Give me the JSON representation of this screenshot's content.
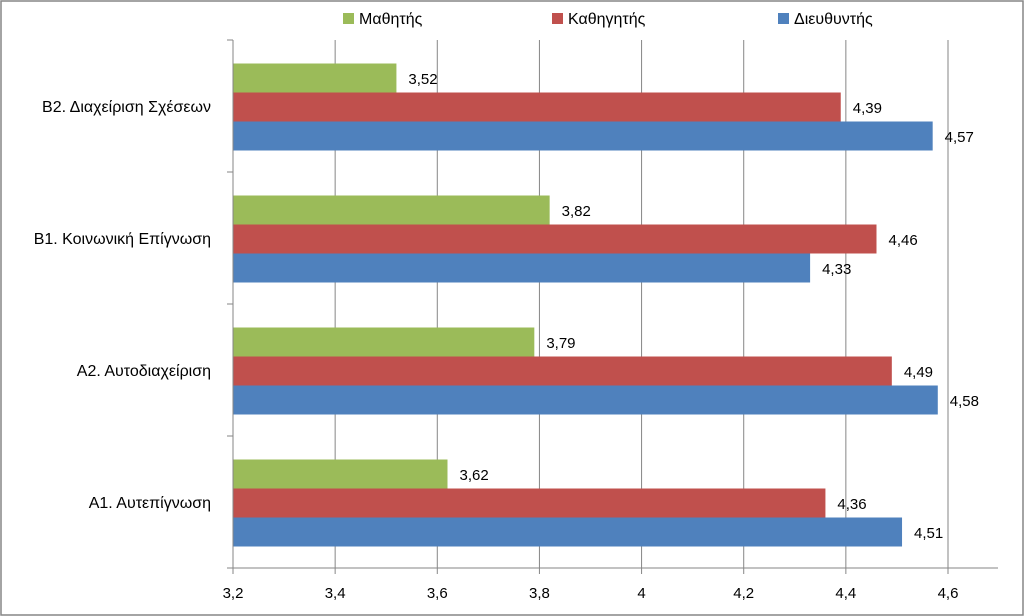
{
  "chart_data": {
    "type": "bar",
    "orientation": "horizontal",
    "categories": [
      "Α1. Αυτεπίγνωση",
      "Α2. Αυτοδιαχείριση",
      "Β1. Κοινωνική  Επίγνωση",
      "Β2. Διαχείριση Σχέσεων"
    ],
    "series": [
      {
        "name": "Μαθητής",
        "color": "#9BBB59",
        "values": [
          3.62,
          3.79,
          3.82,
          3.52
        ],
        "labels": [
          "3,62",
          "3,79",
          "3,82",
          "3,52"
        ]
      },
      {
        "name": "Καθηγητής",
        "color": "#C0504D",
        "values": [
          4.36,
          4.49,
          4.46,
          4.39
        ],
        "labels": [
          "4,36",
          "4,49",
          "4,46",
          "4,39"
        ]
      },
      {
        "name": "Διευθυντής",
        "color": "#4F81BD",
        "values": [
          4.51,
          4.58,
          4.33,
          4.57
        ],
        "labels": [
          "4,51",
          "4,58",
          "4,33",
          "4,57"
        ]
      }
    ],
    "xlim": [
      3.2,
      4.6
    ],
    "x_ticks": [
      3.2,
      3.4,
      3.6,
      3.8,
      4.0,
      4.2,
      4.4,
      4.6
    ],
    "x_tick_labels": [
      "3,2",
      "3,4",
      "3,6",
      "3,8",
      "4",
      "4,2",
      "4,4",
      "4,6"
    ],
    "grid": true,
    "legend_position": "top",
    "title": "",
    "xlabel": "",
    "ylabel": ""
  }
}
